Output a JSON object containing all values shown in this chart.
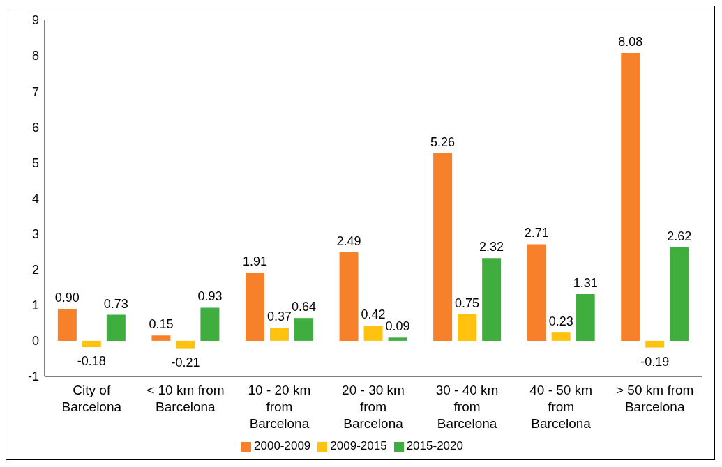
{
  "chart_data": {
    "type": "bar",
    "categories": [
      "City of Barcelona",
      "< 10 km from Barcelona",
      "10 - 20 km from Barcelona",
      "20 - 30 km from Barcelona",
      "30 - 40 km from Barcelona",
      "40 - 50 km from Barcelona",
      "> 50 km from Barcelona"
    ],
    "series": [
      {
        "name": "2000-2009",
        "color": "#f7812a",
        "values": [
          0.9,
          0.15,
          1.91,
          2.49,
          5.26,
          2.71,
          8.08
        ],
        "value_labels": [
          "0.90",
          "0.15",
          "1.91",
          "2.49",
          "5.26",
          "2.71",
          "8.08"
        ]
      },
      {
        "name": "2009-2015",
        "color": "#ffc20e",
        "values": [
          -0.18,
          -0.21,
          0.37,
          0.42,
          0.75,
          0.23,
          -0.19
        ],
        "value_labels": [
          "-0.18",
          "-0.21",
          "0.37",
          "0.42",
          "0.75",
          "0.23",
          "-0.19"
        ]
      },
      {
        "name": "2015-2020",
        "color": "#3fae3f",
        "values": [
          0.73,
          0.93,
          0.64,
          0.09,
          2.32,
          1.31,
          2.62
        ],
        "value_labels": [
          "0.73",
          "0.93",
          "0.64",
          "0.09",
          "2.32",
          "1.31",
          "2.62"
        ]
      }
    ],
    "ylim": [
      -1,
      9
    ],
    "yticks": [
      -1,
      0,
      1,
      2,
      3,
      4,
      5,
      6,
      7,
      8,
      9
    ],
    "legend": "bottom"
  }
}
